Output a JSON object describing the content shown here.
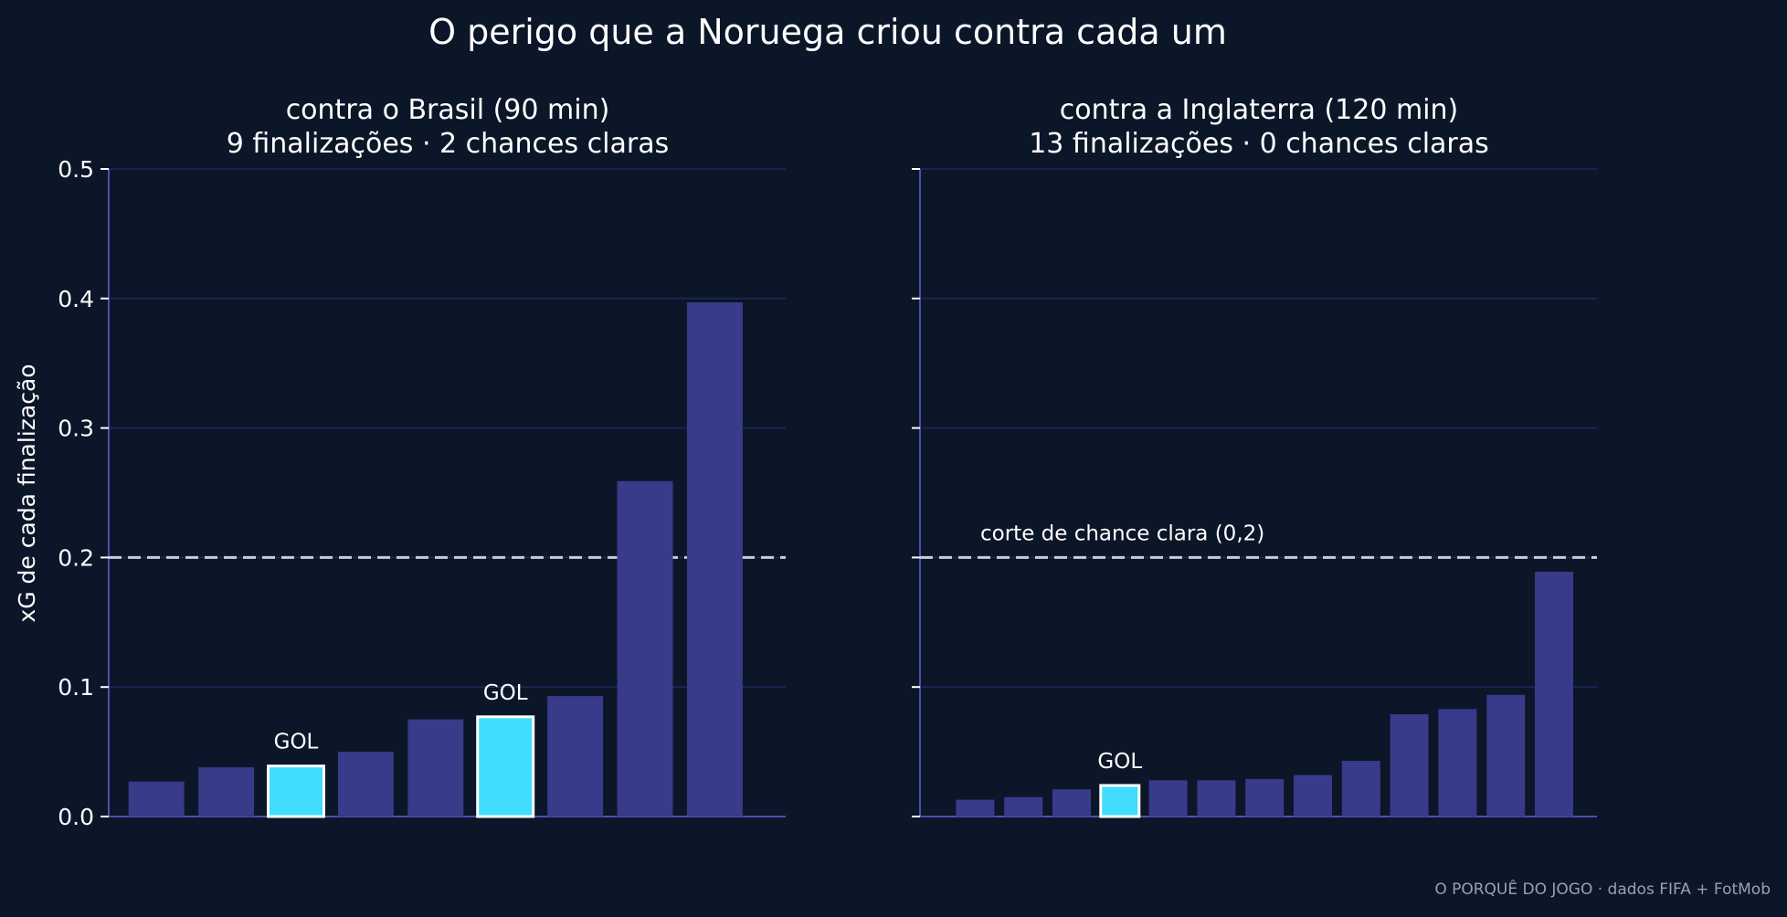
{
  "title": "O perigo que a Noruega criou contra cada um",
  "ylabel": "xG de cada finalização",
  "footer": "O PORQUÊ DO JOGO · dados FIFA + FotMob",
  "colors": {
    "background": "#0b1628",
    "bar": "#383a8a",
    "goal_bar": "#42dcff",
    "goal_edge": "#ffffff",
    "goal_label": "#42dcff",
    "grid": "#1c2a5c",
    "axis": "#4a50b0",
    "threshold": "#c8cde0",
    "text": "#ffffff",
    "footer": "#9aa0b4"
  },
  "chart_data": [
    {
      "type": "bar",
      "title": "contra o Brasil (90 min)",
      "subtitle": "9 finalizações · 2 chances claras",
      "ylim": [
        0,
        0.5
      ],
      "yticks": [
        0.0,
        0.1,
        0.2,
        0.3,
        0.4,
        0.5
      ],
      "ytick_labels": [
        "0.0",
        "0.1",
        "0.2",
        "0.3",
        "0.4",
        "0.5"
      ],
      "grid": true,
      "values": [
        0.027,
        0.038,
        0.039,
        0.05,
        0.075,
        0.077,
        0.093,
        0.259,
        0.397
      ],
      "goal_index": [
        2,
        5
      ],
      "goal_label": "GOL",
      "threshold": {
        "value": 0.2,
        "label": ""
      }
    },
    {
      "type": "bar",
      "title": "contra a Inglaterra (120 min)",
      "subtitle": "13 finalizações · 0 chances claras",
      "ylim": [
        0,
        0.5
      ],
      "yticks": [
        0.0,
        0.1,
        0.2,
        0.3,
        0.4,
        0.5
      ],
      "ytick_labels": [
        "",
        "",
        "",
        "",
        "",
        ""
      ],
      "grid": true,
      "values": [
        0.013,
        0.015,
        0.021,
        0.024,
        0.028,
        0.028,
        0.029,
        0.032,
        0.043,
        0.079,
        0.083,
        0.094,
        0.189
      ],
      "goal_index": [
        3
      ],
      "goal_label": "GOL",
      "threshold": {
        "value": 0.2,
        "label": "corte de chance clara (0,2)"
      }
    }
  ]
}
